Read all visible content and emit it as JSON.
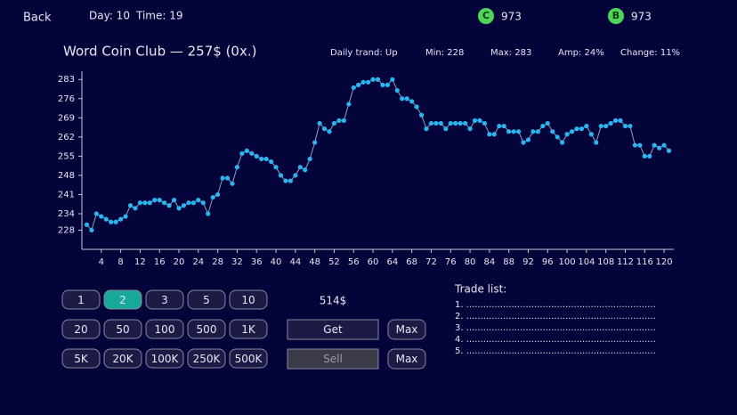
{
  "header": {
    "back": "Back",
    "day": "Day: 10",
    "time": "Time: 19",
    "coins": [
      {
        "icon": "C",
        "amount": "973"
      },
      {
        "icon": "B",
        "amount": "973"
      }
    ]
  },
  "stock": {
    "title": "Word Coin Club — 257$ (0x.)",
    "stats": [
      "Daily trand: Up",
      "Min: 228",
      "Max: 283",
      "Amp: 24%",
      "Change: 11%"
    ]
  },
  "chart_data": {
    "type": "line",
    "color": "#29b6f0",
    "x": [
      1,
      2,
      3,
      4,
      5,
      6,
      7,
      8,
      9,
      10,
      11,
      12,
      13,
      14,
      15,
      16,
      17,
      18,
      19,
      20,
      21,
      22,
      23,
      24,
      25,
      26,
      27,
      28,
      29,
      30,
      31,
      32,
      33,
      34,
      35,
      36,
      37,
      38,
      39,
      40,
      41,
      42,
      43,
      44,
      45,
      46,
      47,
      48,
      49,
      50,
      51,
      52,
      53,
      54,
      55,
      56,
      57,
      58,
      59,
      60,
      61,
      62,
      63,
      64,
      65,
      66,
      67,
      68,
      69,
      70,
      71,
      72,
      73,
      74,
      75,
      76,
      77,
      78,
      79,
      80,
      81,
      82,
      83,
      84,
      85,
      86,
      87,
      88,
      89,
      90,
      91,
      92,
      93,
      94,
      95,
      96,
      97,
      98,
      99,
      100,
      101,
      102,
      103,
      104,
      105,
      106,
      107,
      108,
      109,
      110,
      111,
      112,
      113,
      114,
      115,
      116,
      117,
      118,
      119,
      120,
      121
    ],
    "values": [
      230,
      228,
      234,
      233,
      232,
      231,
      231,
      232,
      233,
      237,
      236,
      238,
      238,
      238,
      239,
      239,
      238,
      237,
      239,
      236,
      237,
      238,
      238,
      239,
      238,
      234,
      240,
      241,
      247,
      247,
      245,
      251,
      256,
      257,
      256,
      255,
      254,
      254,
      253,
      251,
      248,
      246,
      246,
      248,
      251,
      250,
      254,
      260,
      267,
      265,
      264,
      267,
      268,
      268,
      274,
      280,
      281,
      282,
      282,
      283,
      283,
      281,
      281,
      283,
      279,
      276,
      276,
      275,
      273,
      270,
      265,
      267,
      267,
      267,
      265,
      267,
      267,
      267,
      267,
      265,
      268,
      268,
      267,
      263,
      263,
      266,
      266,
      264,
      264,
      264,
      260,
      261,
      264,
      264,
      266,
      267,
      264,
      262,
      260,
      263,
      264,
      265,
      265,
      266,
      263,
      260,
      266,
      266,
      267,
      268,
      268,
      266,
      266,
      259,
      259,
      255,
      255,
      259,
      258,
      259,
      257
    ],
    "xlim": [
      0,
      122
    ],
    "ylim": [
      221,
      286
    ],
    "xticks": [
      4,
      8,
      12,
      16,
      20,
      24,
      28,
      32,
      36,
      40,
      44,
      48,
      52,
      56,
      60,
      64,
      68,
      72,
      76,
      80,
      84,
      88,
      92,
      96,
      100,
      104,
      108,
      112,
      116,
      120
    ],
    "yticks": [
      228,
      234,
      241,
      248,
      255,
      262,
      269,
      276,
      283
    ]
  },
  "controls": {
    "amount_buttons": [
      "1",
      "2",
      "3",
      "5",
      "10",
      "20",
      "50",
      "100",
      "500",
      "1K",
      "5K",
      "20K",
      "100K",
      "250K",
      "500K"
    ],
    "active_amount_index": 1,
    "total": "514$",
    "get": "Get",
    "sell": "Sell",
    "max_get": "Max",
    "max_sell": "Max"
  },
  "trade_list": {
    "title": "Trade list:",
    "rows": [
      "1. ...................................................................",
      "2. ...................................................................",
      "3. ...................................................................",
      "4. ...................................................................",
      "5. ..................................................................."
    ]
  }
}
